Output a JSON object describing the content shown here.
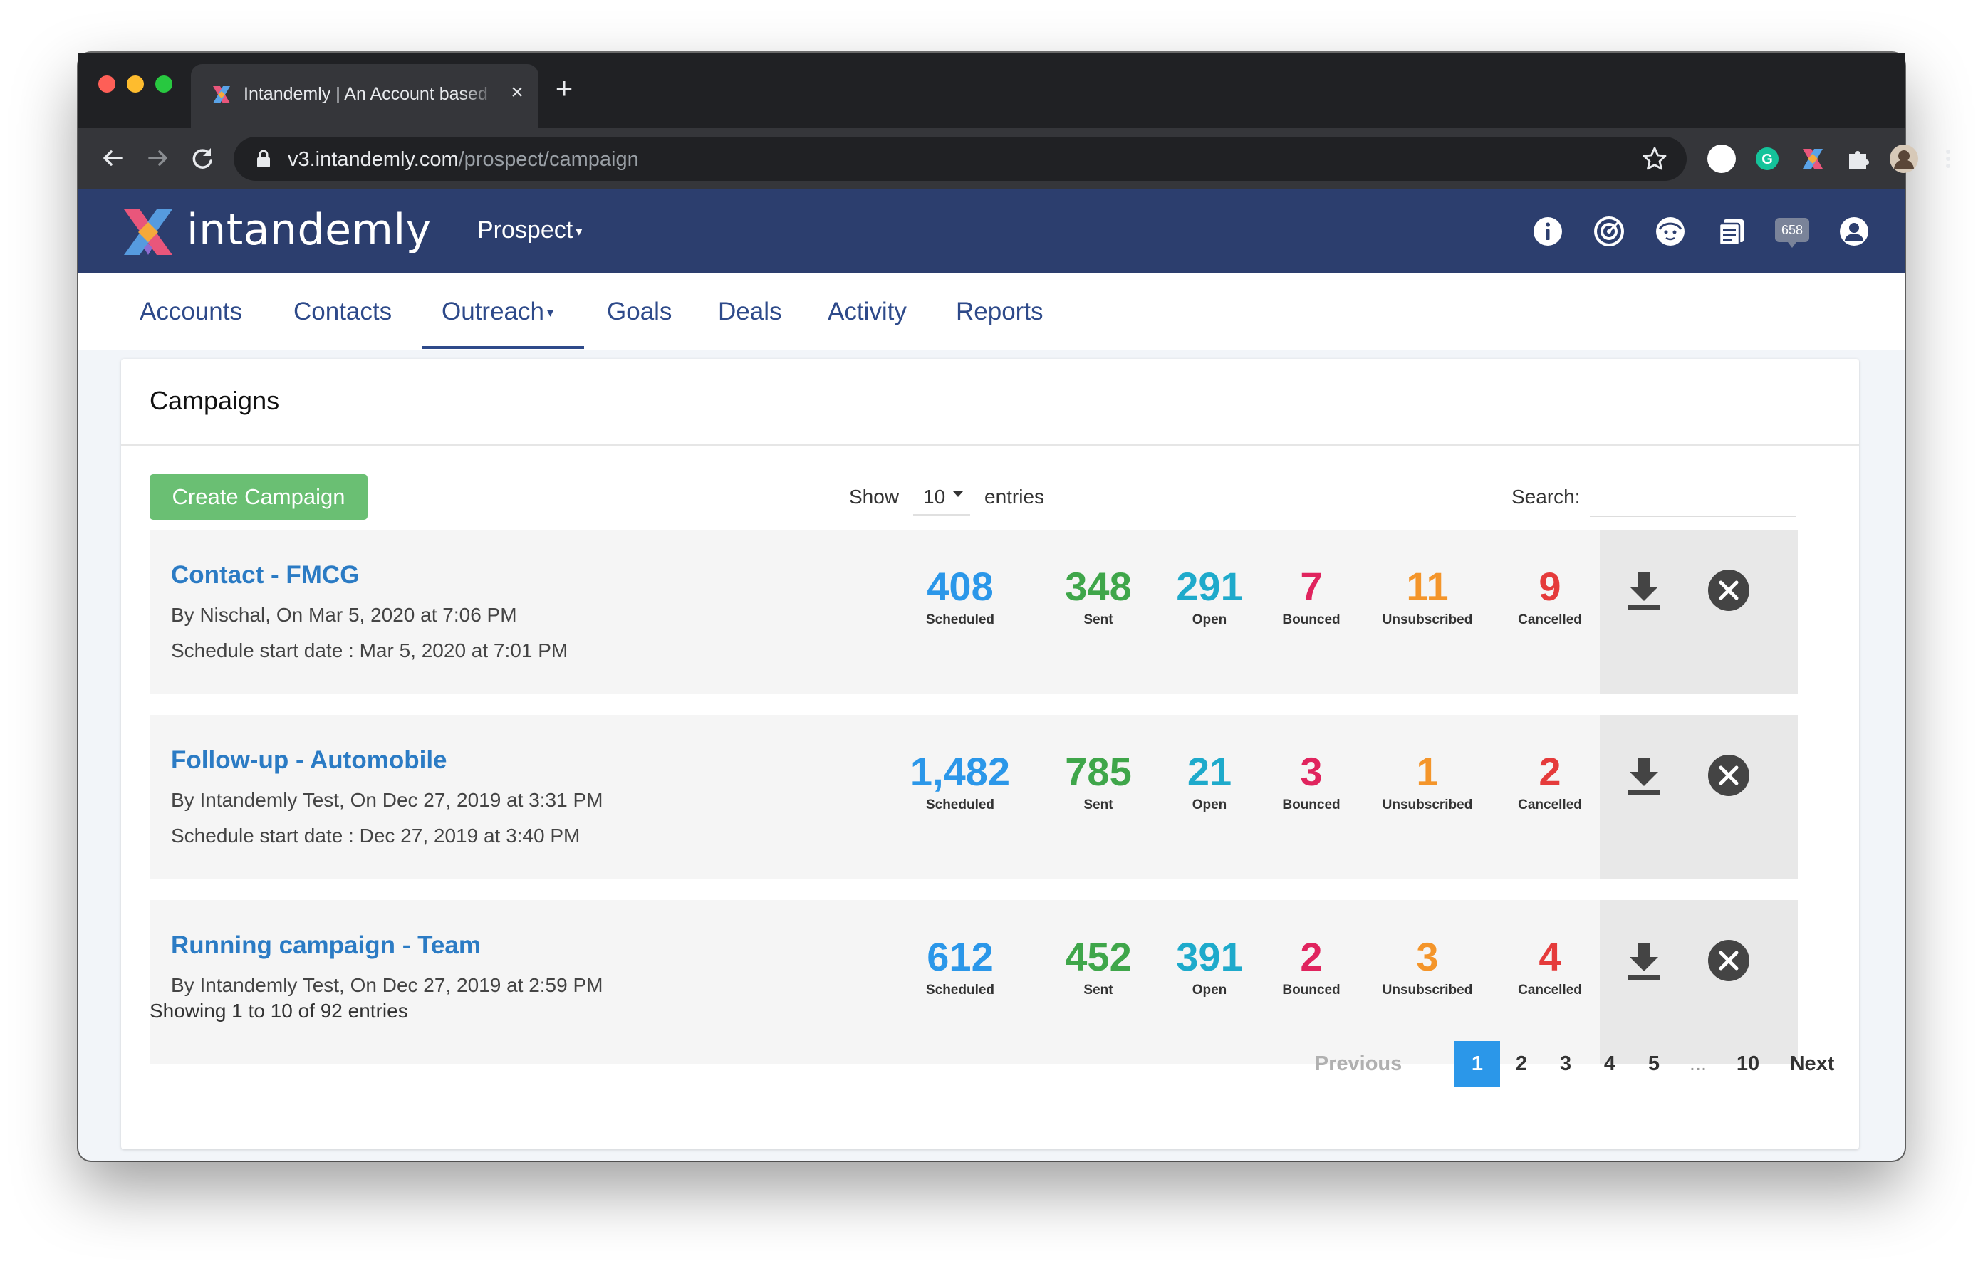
{
  "browser": {
    "tab_title": "Intandemly | An Account based",
    "url_host": "v3.intandemly.com",
    "url_path": "/prospect/campaign",
    "new_tab": "+"
  },
  "app": {
    "logo_text": "intandemly",
    "module": "Prospect",
    "notification_count": "658"
  },
  "subnav": {
    "items": [
      "Accounts",
      "Contacts",
      "Outreach",
      "Goals",
      "Deals",
      "Activity",
      "Reports"
    ],
    "active": "Outreach"
  },
  "card": {
    "title": "Campaigns",
    "create_button": "Create Campaign",
    "show_label": "Show",
    "show_value": "10",
    "entries_label": "entries",
    "search_label": "Search:",
    "search_value": ""
  },
  "stat_labels": [
    "Scheduled",
    "Sent",
    "Open",
    "Bounced",
    "Unsubscribed",
    "Cancelled"
  ],
  "stat_colors": [
    "#2b97e9",
    "#3fa64a",
    "#1eaacb",
    "#e0245e",
    "#f4952a",
    "#e53b3b"
  ],
  "campaigns": [
    {
      "name": "Contact - FMCG",
      "by": "By Nischal, On Mar 5, 2020 at 7:06 PM",
      "schedule": "Schedule start date : Mar 5, 2020 at 7:01 PM",
      "stats": [
        "408",
        "348",
        "291",
        "7",
        "11",
        "9"
      ]
    },
    {
      "name": "Follow-up - Automobile",
      "by": "By Intandemly Test, On Dec 27, 2019 at 3:31 PM",
      "schedule": "Schedule start date : Dec 27, 2019 at 3:40 PM",
      "stats": [
        "1,482",
        "785",
        "21",
        "3",
        "1",
        "2"
      ]
    },
    {
      "name": "Running campaign - Team",
      "by": "By Intandemly Test, On Dec 27, 2019 at 2:59 PM",
      "schedule": "",
      "stats": [
        "612",
        "452",
        "391",
        "2",
        "3",
        "4"
      ]
    }
  ],
  "footer": {
    "showing": "Showing 1 to 10 of 92 entries",
    "previous": "Previous",
    "pages": [
      "1",
      "2",
      "3",
      "4",
      "5"
    ],
    "dots": "...",
    "last_page": "10",
    "next": "Next",
    "active_page": "1"
  }
}
